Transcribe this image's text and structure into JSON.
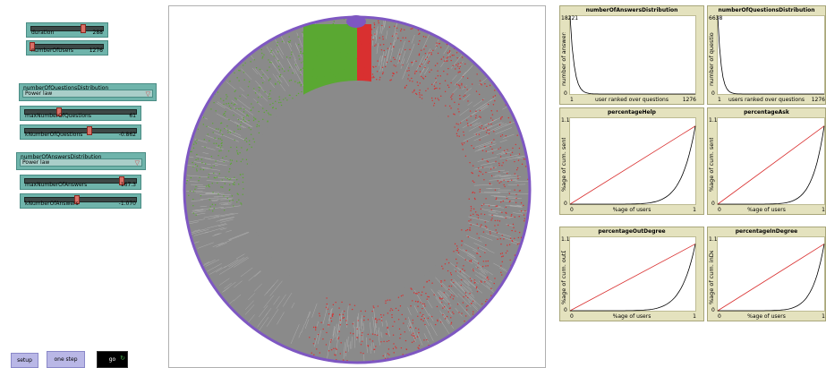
{
  "controls": {
    "duration": {
      "label": "duration",
      "value": "288",
      "position": 0.6
    },
    "numberOfUsers": {
      "label": "numberOfUsers",
      "value": "1276",
      "position": 0.0
    },
    "numberOfQuestionsDistribution": {
      "label": "numberOfQuestionsDistribution",
      "value": "Power law"
    },
    "maxNumberOfQuestions": {
      "label": "maxNumberOfQuestions",
      "value": "61",
      "position": 0.3
    },
    "kNumberOfQuestions": {
      "label": "kNumberOfQuestions",
      "value": "-0.862",
      "position": 0.55
    },
    "numberOfAnswersDistribution": {
      "label": "numberOfAnswersDistribution",
      "value": "Power law"
    },
    "maxNumberOfAnswers": {
      "label": "maxNumberOfAnswers",
      "value": "167.3",
      "position": 0.88
    },
    "kNumberOfAnswers": {
      "label": "kNumberOfAnswers",
      "value": "-1.070",
      "position": 0.47
    }
  },
  "buttons": {
    "setup": "setup",
    "one_step": "one step",
    "go": "go"
  },
  "plots": [
    {
      "id": "answers",
      "title": "numberOfAnswersDistribution",
      "ylabel": "number of answers",
      "xlabel": "user ranked over questions",
      "ymax": "18221",
      "ymin": "0",
      "xmin": "1",
      "xmax": "1276",
      "kind": "decay"
    },
    {
      "id": "questions",
      "title": "numberOfQuestionsDistribution",
      "ylabel": "number of questions",
      "xlabel": "users ranked over questions",
      "ymax": "6638",
      "ymin": "0",
      "xmin": "1",
      "xmax": "1276",
      "kind": "decay"
    },
    {
      "id": "help",
      "title": "percentageHelp",
      "ylabel": "%age of cum. sent answers",
      "xlabel": "%age of users",
      "ymax": "1.1",
      "ymin": "0",
      "xmin": "0",
      "xmax": "1",
      "kind": "lorenz"
    },
    {
      "id": "ask",
      "title": "percentageAsk",
      "ylabel": "%age of cum. sent questions",
      "xlabel": "%age of users",
      "ymax": "1.1",
      "ymin": "0",
      "xmin": "0",
      "xmax": "1",
      "kind": "lorenz"
    },
    {
      "id": "outdeg",
      "title": "percentageOutDegree",
      "ylabel": "%age of cum. outDegree",
      "xlabel": "%age of users",
      "ymax": "1.1",
      "ymin": "0",
      "xmin": "0",
      "xmax": "1",
      "kind": "lorenz"
    },
    {
      "id": "indeg",
      "title": "percentageInDegree",
      "ylabel": "%age of cum. inDegree",
      "xlabel": "%age of users",
      "ymax": "1.1",
      "ymin": "0",
      "xmin": "0",
      "xmax": "1",
      "kind": "lorenz"
    }
  ],
  "colors": {
    "network_gray": "#8a8a8a",
    "ring_purple": "#7e57c2",
    "green_links": "#5aa832",
    "red_links": "#d93030",
    "slider_teal": "#6fb4ab",
    "button_lavender": "#b9b7e6",
    "plot_bg": "#e4e2be"
  }
}
